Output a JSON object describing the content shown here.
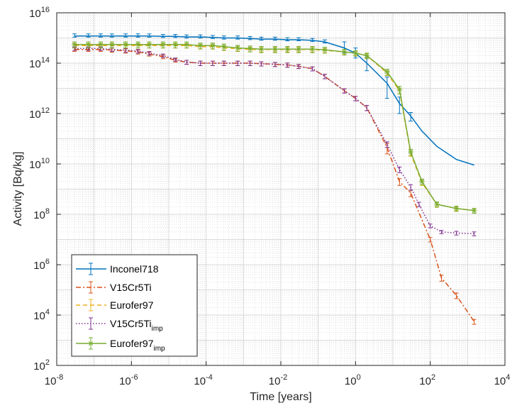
{
  "chart_data": {
    "type": "line",
    "title": "",
    "xlabel": "Time [years]",
    "ylabel": "Activity [Bq/kg]",
    "xscale": "log",
    "yscale": "log",
    "xlim": [
      1e-08,
      10000.0
    ],
    "ylim": [
      100.0,
      1e+16
    ],
    "x_ticks": [
      {
        "value": 1e-08,
        "base": "10",
        "exp": "-8"
      },
      {
        "value": 1e-06,
        "base": "10",
        "exp": "-6"
      },
      {
        "value": 0.0001,
        "base": "10",
        "exp": "-4"
      },
      {
        "value": 0.01,
        "base": "10",
        "exp": "-2"
      },
      {
        "value": 1.0,
        "base": "10",
        "exp": "0"
      },
      {
        "value": 100.0,
        "base": "10",
        "exp": "2"
      },
      {
        "value": 10000.0,
        "base": "10",
        "exp": "4"
      }
    ],
    "y_ticks": [
      {
        "value": 100.0,
        "base": "10",
        "exp": "2"
      },
      {
        "value": 10000.0,
        "base": "10",
        "exp": "4"
      },
      {
        "value": 1000000.0,
        "base": "10",
        "exp": "6"
      },
      {
        "value": 100000000.0,
        "base": "10",
        "exp": "8"
      },
      {
        "value": 10000000000.0,
        "base": "10",
        "exp": "10"
      },
      {
        "value": 1000000000000.0,
        "base": "10",
        "exp": "12"
      },
      {
        "value": 100000000000000.0,
        "base": "10",
        "exp": "14"
      },
      {
        "value": 1e+16,
        "base": "10",
        "exp": "16"
      }
    ],
    "grid": true,
    "minor_grid": true,
    "legend_position": "bottom-left",
    "series": [
      {
        "label_main": "Inconel718",
        "label_sub": "",
        "color": "#0072BD",
        "dash": "solid",
        "marker": "none",
        "x": [
          3e-08,
          7e-08,
          1.5e-07,
          3e-07,
          7e-07,
          1.5e-06,
          3e-06,
          7e-06,
          1.5e-05,
          3e-05,
          7e-05,
          0.00015,
          0.0003,
          0.0007,
          0.0015,
          0.003,
          0.007,
          0.015,
          0.03,
          0.07,
          0.15,
          0.5,
          1,
          2,
          7,
          15,
          30,
          60,
          150,
          500,
          1500
        ],
        "y": [
          1200000000000000.0,
          1200000000000000.0,
          1200000000000000.0,
          1200000000000000.0,
          1200000000000000.0,
          1200000000000000.0,
          1200000000000000.0,
          1150000000000000.0,
          1150000000000000.0,
          1100000000000000.0,
          1100000000000000.0,
          1050000000000000.0,
          1000000000000000.0,
          1000000000000000.0,
          950000000000000.0,
          900000000000000.0,
          900000000000000.0,
          850000000000000.0,
          850000000000000.0,
          800000000000000.0,
          700000000000000.0,
          400000000000000.0,
          250000000000000.0,
          100000000000000.0,
          16000000000000.0,
          2500000000000.0,
          800000000000.0,
          200000000000.0,
          50000000000.0,
          15000000000.0,
          9000000000.0
        ],
        "err_lo": [
          120000000000000.0,
          120000000000000.0,
          120000000000000.0,
          120000000000000.0,
          120000000000000.0,
          120000000000000.0,
          120000000000000.0,
          110000000000000.0,
          110000000000000.0,
          110000000000000.0,
          110000000000000.0,
          100000000000000.0,
          100000000000000.0,
          100000000000000.0,
          90000000000000.0,
          90000000000000.0,
          90000000000000.0,
          80000000000000.0,
          80000000000000.0,
          80000000000000.0,
          70000000000000.0,
          150000000000000.0,
          90000000000000.0,
          50000000000000.0,
          12000000000000.0,
          1500000000000.0,
          300000000000.0,
          0,
          0,
          0,
          0
        ],
        "err_hi": [
          250000000000000.0,
          250000000000000.0,
          250000000000000.0,
          250000000000000.0,
          250000000000000.0,
          250000000000000.0,
          250000000000000.0,
          230000000000000.0,
          230000000000000.0,
          220000000000000.0,
          220000000000000.0,
          210000000000000.0,
          200000000000000.0,
          200000000000000.0,
          190000000000000.0,
          180000000000000.0,
          180000000000000.0,
          170000000000000.0,
          170000000000000.0,
          160000000000000.0,
          140000000000000.0,
          300000000000000.0,
          150000000000000.0,
          70000000000000.0,
          12000000000000.0,
          2000000000000.0,
          300000000000.0,
          0,
          0,
          0,
          0
        ]
      },
      {
        "label_main": "V15Cr5Ti",
        "label_sub": "",
        "color": "#D95319",
        "dash": "dashdot",
        "marker": "none",
        "x": [
          3e-08,
          7e-08,
          1.5e-07,
          3e-07,
          7e-07,
          1.5e-06,
          3e-06,
          7e-06,
          1.5e-05,
          3e-05,
          7e-05,
          0.00015,
          0.0003,
          0.0007,
          0.0015,
          0.003,
          0.007,
          0.015,
          0.03,
          0.07,
          0.15,
          0.5,
          1,
          2,
          7,
          15,
          30,
          100,
          200,
          500,
          1500
        ],
        "y": [
          350000000000000.0,
          350000000000000.0,
          350000000000000.0,
          330000000000000.0,
          310000000000000.0,
          280000000000000.0,
          230000000000000.0,
          180000000000000.0,
          130000000000000.0,
          110000000000000.0,
          100000000000000.0,
          100000000000000.0,
          100000000000000.0,
          100000000000000.0,
          100000000000000.0,
          95000000000000.0,
          90000000000000.0,
          85000000000000.0,
          75000000000000.0,
          60000000000000.0,
          30000000000000.0,
          8000000000000.0,
          4000000000000.0,
          1700000000000.0,
          45000000000.0,
          2000000000.0,
          700000000.0,
          10000000.0,
          300000.0,
          60000.0,
          5500.0
        ],
        "err_lo": [
          60000000000000.0,
          60000000000000.0,
          60000000000000.0,
          60000000000000.0,
          60000000000000.0,
          50000000000000.0,
          40000000000000.0,
          30000000000000.0,
          20000000000000.0,
          20000000000000.0,
          20000000000000.0,
          20000000000000.0,
          20000000000000.0,
          20000000000000.0,
          20000000000000.0,
          18000000000000.0,
          17000000000000.0,
          16000000000000.0,
          14000000000000.0,
          11000000000000.0,
          6000000000000.0,
          1500000000000.0,
          800000000000.0,
          400000000000.0,
          20000000000.0,
          600000000.0,
          200000000.0,
          2000000.0,
          80000.0,
          15000.0,
          1200.0
        ],
        "err_hi": [
          60000000000000.0,
          60000000000000.0,
          60000000000000.0,
          60000000000000.0,
          60000000000000.0,
          50000000000000.0,
          40000000000000.0,
          30000000000000.0,
          20000000000000.0,
          20000000000000.0,
          20000000000000.0,
          20000000000000.0,
          20000000000000.0,
          20000000000000.0,
          20000000000000.0,
          18000000000000.0,
          17000000000000.0,
          16000000000000.0,
          14000000000000.0,
          11000000000000.0,
          6000000000000.0,
          1500000000000.0,
          800000000000.0,
          400000000000.0,
          20000000000.0,
          600000000.0,
          200000000.0,
          2000000.0,
          80000.0,
          15000.0,
          1200.0
        ]
      },
      {
        "label_main": "Eurofer97",
        "label_sub": "",
        "color": "#EDB120",
        "dash": "dashed",
        "marker": "none",
        "x": [
          3e-08,
          7e-08,
          1.5e-07,
          3e-07,
          7e-07,
          1.5e-06,
          3e-06,
          7e-06,
          1.5e-05,
          3e-05,
          7e-05,
          0.00015,
          0.0003,
          0.0007,
          0.0015,
          0.003,
          0.007,
          0.015,
          0.03,
          0.07,
          0.15,
          0.5,
          1,
          2,
          7,
          15,
          30,
          60,
          150,
          500,
          1500
        ],
        "y": [
          500000000000000.0,
          500000000000000.0,
          500000000000000.0,
          500000000000000.0,
          500000000000000.0,
          500000000000000.0,
          500000000000000.0,
          500000000000000.0,
          500000000000000.0,
          500000000000000.0,
          450000000000000.0,
          450000000000000.0,
          400000000000000.0,
          380000000000000.0,
          350000000000000.0,
          350000000000000.0,
          350000000000000.0,
          350000000000000.0,
          350000000000000.0,
          350000000000000.0,
          320000000000000.0,
          280000000000000.0,
          250000000000000.0,
          200000000000000.0,
          40000000000000.0,
          8000000000000.0,
          25000000000.0,
          1800000000.0,
          250000000.0,
          170000000.0,
          140000000.0
        ],
        "err_lo": [
          100000000000000.0,
          100000000000000.0,
          100000000000000.0,
          100000000000000.0,
          100000000000000.0,
          100000000000000.0,
          100000000000000.0,
          100000000000000.0,
          100000000000000.0,
          100000000000000.0,
          90000000000000.0,
          90000000000000.0,
          80000000000000.0,
          80000000000000.0,
          70000000000000.0,
          70000000000000.0,
          70000000000000.0,
          70000000000000.0,
          70000000000000.0,
          70000000000000.0,
          60000000000000.0,
          60000000000000.0,
          50000000000000.0,
          40000000000000.0,
          8000000000000.0,
          2000000000000.0,
          5000000000.0,
          400000000.0,
          50000000.0,
          30000000.0,
          30000000.0
        ],
        "err_hi": [
          100000000000000.0,
          100000000000000.0,
          100000000000000.0,
          100000000000000.0,
          100000000000000.0,
          100000000000000.0,
          100000000000000.0,
          100000000000000.0,
          100000000000000.0,
          100000000000000.0,
          90000000000000.0,
          90000000000000.0,
          80000000000000.0,
          80000000000000.0,
          70000000000000.0,
          70000000000000.0,
          70000000000000.0,
          70000000000000.0,
          70000000000000.0,
          70000000000000.0,
          60000000000000.0,
          60000000000000.0,
          50000000000000.0,
          40000000000000.0,
          8000000000000.0,
          2000000000000.0,
          5000000000.0,
          400000000.0,
          50000000.0,
          30000000.0,
          30000000.0
        ]
      },
      {
        "label_main": "V15Cr5Ti",
        "label_sub": "imp",
        "color": "#7E2F8E",
        "dash": "dotted",
        "marker": "none",
        "x": [
          3e-08,
          7e-08,
          1.5e-07,
          3e-07,
          7e-07,
          1.5e-06,
          3e-06,
          7e-06,
          1.5e-05,
          3e-05,
          7e-05,
          0.00015,
          0.0003,
          0.0007,
          0.0015,
          0.003,
          0.007,
          0.015,
          0.03,
          0.07,
          0.15,
          0.5,
          1,
          2,
          7,
          15,
          30,
          50,
          100,
          200,
          500,
          1500
        ],
        "y": [
          380000000000000.0,
          380000000000000.0,
          380000000000000.0,
          350000000000000.0,
          330000000000000.0,
          300000000000000.0,
          250000000000000.0,
          200000000000000.0,
          140000000000000.0,
          110000000000000.0,
          100000000000000.0,
          100000000000000.0,
          100000000000000.0,
          100000000000000.0,
          100000000000000.0,
          95000000000000.0,
          90000000000000.0,
          85000000000000.0,
          75000000000000.0,
          60000000000000.0,
          30000000000000.0,
          8000000000000.0,
          4000000000000.0,
          1700000000000.0,
          60000000000.0,
          6000000000.0,
          1200000000.0,
          250000000.0,
          35000000.0,
          20000000.0,
          18000000.0,
          17000000.0
        ],
        "err_lo": [
          60000000000000.0,
          60000000000000.0,
          60000000000000.0,
          60000000000000.0,
          60000000000000.0,
          50000000000000.0,
          40000000000000.0,
          30000000000000.0,
          20000000000000.0,
          20000000000000.0,
          20000000000000.0,
          20000000000000.0,
          20000000000000.0,
          20000000000000.0,
          20000000000000.0,
          18000000000000.0,
          17000000000000.0,
          16000000000000.0,
          14000000000000.0,
          11000000000000.0,
          6000000000000.0,
          1500000000000.0,
          800000000000.0,
          400000000000.0,
          15000000000.0,
          1500000000.0,
          300000000.0,
          50000000.0,
          6000000.0,
          3000000.0,
          3000000.0,
          3000000.0
        ],
        "err_hi": [
          60000000000000.0,
          60000000000000.0,
          60000000000000.0,
          60000000000000.0,
          60000000000000.0,
          50000000000000.0,
          40000000000000.0,
          30000000000000.0,
          20000000000000.0,
          20000000000000.0,
          20000000000000.0,
          20000000000000.0,
          20000000000000.0,
          20000000000000.0,
          20000000000000.0,
          18000000000000.0,
          17000000000000.0,
          16000000000000.0,
          14000000000000.0,
          11000000000000.0,
          6000000000000.0,
          1500000000000.0,
          800000000000.0,
          400000000000.0,
          15000000000.0,
          1500000000.0,
          300000000.0,
          50000000.0,
          6000000.0,
          3000000.0,
          3000000.0,
          3000000.0
        ]
      },
      {
        "label_main": "Eurofer97",
        "label_sub": "imp",
        "color": "#77AC30",
        "dash": "solid",
        "marker": "star",
        "x": [
          3e-08,
          7e-08,
          1.5e-07,
          3e-07,
          7e-07,
          1.5e-06,
          3e-06,
          7e-06,
          1.5e-05,
          3e-05,
          7e-05,
          0.00015,
          0.0003,
          0.0007,
          0.0015,
          0.003,
          0.007,
          0.015,
          0.03,
          0.07,
          0.15,
          0.5,
          1,
          2,
          7,
          15,
          30,
          60,
          150,
          500,
          1500
        ],
        "y": [
          550000000000000.0,
          550000000000000.0,
          550000000000000.0,
          550000000000000.0,
          550000000000000.0,
          550000000000000.0,
          550000000000000.0,
          550000000000000.0,
          550000000000000.0,
          550000000000000.0,
          500000000000000.0,
          500000000000000.0,
          450000000000000.0,
          400000000000000.0,
          380000000000000.0,
          360000000000000.0,
          360000000000000.0,
          360000000000000.0,
          360000000000000.0,
          360000000000000.0,
          340000000000000.0,
          280000000000000.0,
          250000000000000.0,
          200000000000000.0,
          45000000000000.0,
          9000000000000.0,
          30000000000.0,
          2000000000.0,
          250000000.0,
          170000000.0,
          140000000.0
        ],
        "err_lo": [
          150000000000000.0,
          150000000000000.0,
          150000000000000.0,
          150000000000000.0,
          150000000000000.0,
          150000000000000.0,
          150000000000000.0,
          150000000000000.0,
          150000000000000.0,
          150000000000000.0,
          130000000000000.0,
          130000000000000.0,
          120000000000000.0,
          110000000000000.0,
          100000000000000.0,
          100000000000000.0,
          100000000000000.0,
          100000000000000.0,
          100000000000000.0,
          100000000000000.0,
          90000000000000.0,
          70000000000000.0,
          60000000000000.0,
          50000000000000.0,
          12000000000000.0,
          3000000000000.0,
          8000000000.0,
          500000000.0,
          60000000.0,
          40000000.0,
          30000000.0
        ],
        "err_hi": [
          150000000000000.0,
          150000000000000.0,
          150000000000000.0,
          150000000000000.0,
          150000000000000.0,
          150000000000000.0,
          150000000000000.0,
          150000000000000.0,
          150000000000000.0,
          150000000000000.0,
          130000000000000.0,
          130000000000000.0,
          120000000000000.0,
          110000000000000.0,
          100000000000000.0,
          100000000000000.0,
          100000000000000.0,
          100000000000000.0,
          100000000000000.0,
          100000000000000.0,
          90000000000000.0,
          70000000000000.0,
          60000000000000.0,
          50000000000000.0,
          12000000000000.0,
          3000000000000.0,
          8000000000.0,
          500000000.0,
          60000000.0,
          40000000.0,
          30000000.0
        ]
      }
    ]
  }
}
